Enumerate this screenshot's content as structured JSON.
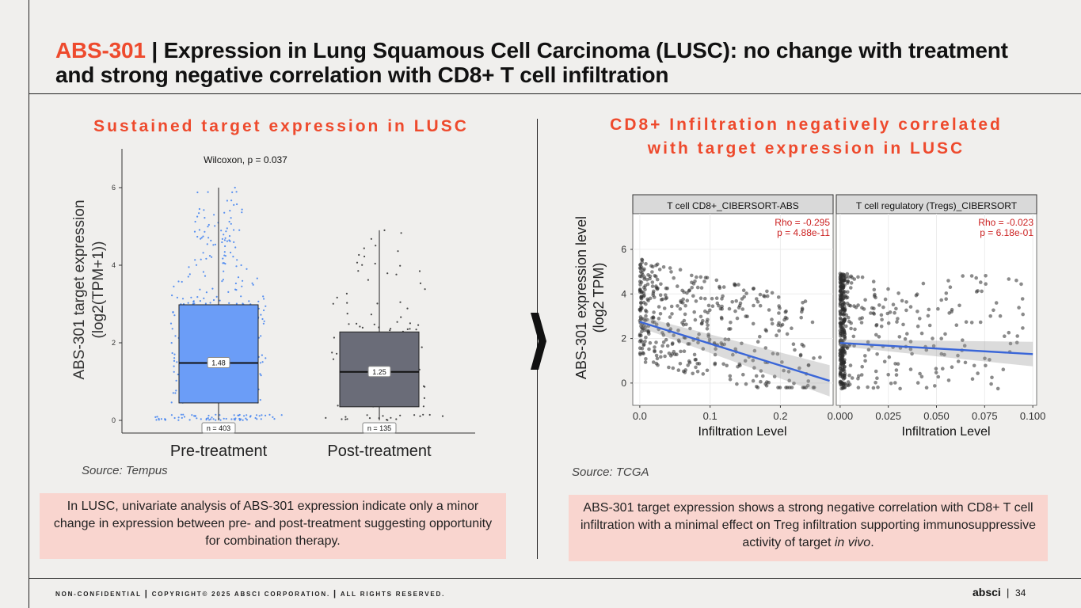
{
  "header": {
    "title_accent": "ABS-301",
    "title_sep": " | ",
    "title_rest": "Expression in Lung Squamous Cell Carcinoma (LUSC): no change with treatment and strong negative correlation with CD8+ T cell infiltration"
  },
  "left": {
    "heading": "Sustained target expression in LUSC",
    "source": "Source: Tempus",
    "callout": "In LUSC, univariate analysis of ABS-301 expression indicate only a minor change in expression between pre- and post-treatment suggesting opportunity for combination therapy."
  },
  "right": {
    "heading_line1": "CD8+ Infiltration negatively correlated",
    "heading_line2": "with target expression in LUSC",
    "source": "Source: TCGA",
    "callout_text": "ABS-301 target expression shows a strong negative correlation with CD8+ T cell infiltration with a minimal effect on Treg infiltration supporting immunosuppressive activity of target ",
    "callout_italic": "in vivo",
    "callout_end": "."
  },
  "footer": {
    "conf": "NON-CONFIDENTIAL",
    "copyright": "COPYRIGHT© 2025 ABSCI CORPORATION.",
    "rights": "ALL RIGHTS RESERVED.",
    "logo": "absci",
    "page": "34"
  },
  "colors": {
    "accent": "#ee4a2d",
    "pre_box": "#6b9df7",
    "post_box": "#6a6c78",
    "fit_line": "#3a66d8"
  },
  "chart_data": [
    {
      "type": "box",
      "annotation": "Wilcoxon, p = 0.037",
      "ylabel_line1": "ABS-301 target expression",
      "ylabel_line2": "(log2(TPM+1))",
      "ylim": [
        0,
        7
      ],
      "yticks": [
        "0",
        "2",
        "4",
        "6"
      ],
      "grid": false,
      "groups": [
        {
          "name": "Pre-treatment",
          "median": 1.48,
          "median_label": "1.48",
          "q1": 0.45,
          "q3": 2.98,
          "whisker_low": 0.0,
          "whisker_high": 6.0,
          "n_label": "n = 403",
          "color": "#6b9df7",
          "point_color": "#3d7ff0"
        },
        {
          "name": "Post-treatment",
          "median": 1.25,
          "median_label": "1.25",
          "q1": 0.35,
          "q3": 2.28,
          "whisker_low": 0.0,
          "whisker_high": 4.9,
          "n_label": "n = 135",
          "color": "#6a6c78",
          "point_color": "#2a2a2a"
        }
      ]
    },
    {
      "type": "scatter",
      "ylabel_line1": "ABS-301 expression level",
      "ylabel_line2": "(log2 TPM)",
      "xlabel": "Infiltration Level",
      "panels": [
        {
          "strip": "T cell CD8+_CIBERSORT-ABS",
          "rho": "Rho = -0.295",
          "p": "p = 4.88e-11",
          "xlim": [
            -0.01,
            0.275
          ],
          "ylim": [
            -1.0,
            7.6
          ],
          "xticks": [
            {
              "v": 0.0,
              "l": "0.0"
            },
            {
              "v": 0.1,
              "l": "0.1"
            },
            {
              "v": 0.2,
              "l": "0.2"
            }
          ],
          "yticks": [
            {
              "v": 0,
              "l": "0"
            },
            {
              "v": 2,
              "l": "2"
            },
            {
              "v": 4,
              "l": "4"
            },
            {
              "v": 6,
              "l": "6"
            }
          ],
          "fit": {
            "x0": 0.0,
            "y0": 2.75,
            "x1": 0.27,
            "y1": 0.1
          }
        },
        {
          "strip": "T cell regulatory (Tregs)_CIBERSORT",
          "rho": "Rho = -0.023",
          "p": "p = 6.18e-01",
          "xlim": [
            -0.002,
            0.102
          ],
          "ylim": [
            -1.0,
            7.6
          ],
          "xticks": [
            {
              "v": 0.0,
              "l": "0.000"
            },
            {
              "v": 0.025,
              "l": "0.025"
            },
            {
              "v": 0.05,
              "l": "0.050"
            },
            {
              "v": 0.075,
              "l": "0.075"
            },
            {
              "v": 0.1,
              "l": "0.100"
            }
          ],
          "yticks": [],
          "fit": {
            "x0": 0.0,
            "y0": 1.8,
            "x1": 0.1,
            "y1": 1.3
          }
        }
      ]
    }
  ]
}
